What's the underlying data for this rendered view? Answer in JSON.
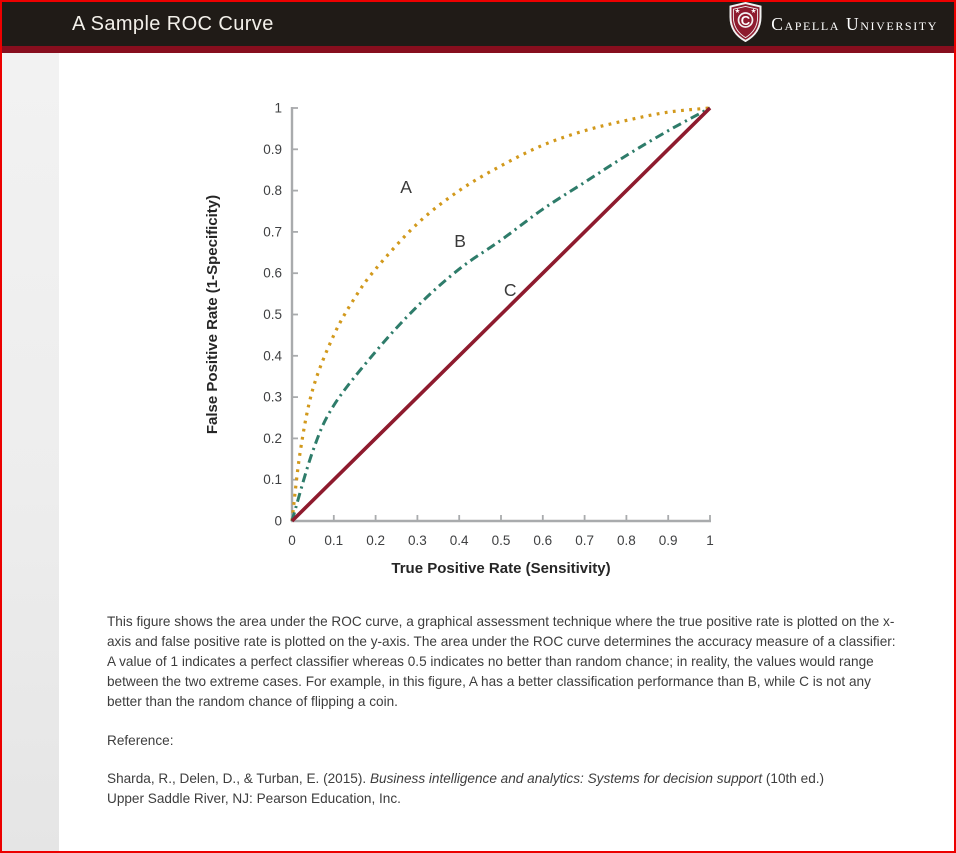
{
  "header": {
    "title": "A Sample ROC Curve",
    "logo_text": "Capella University",
    "bg_color": "#201b17",
    "accent_color": "#870e1e",
    "shield_color": "#8e1b2e",
    "border_color": "#ec0000"
  },
  "chart_data": {
    "type": "line",
    "title": "",
    "xlabel": "True Positive Rate (Sensitivity)",
    "ylabel": "False Positive Rate (1-Specificity)",
    "xlim": [
      0,
      1
    ],
    "ylim": [
      0,
      1
    ],
    "grid": false,
    "legend_position": "none",
    "axis_color": "#a9abad",
    "xticks": [
      "0",
      "0.1",
      "0.2",
      "0.3",
      "0.4",
      "0.5",
      "0.6",
      "0.7",
      "0.8",
      "0.9",
      "1"
    ],
    "yticks": [
      "0",
      "0.1",
      "0.2",
      "0.3",
      "0.4",
      "0.5",
      "0.6",
      "0.7",
      "0.8",
      "0.9",
      "1"
    ],
    "series": [
      {
        "name": "A",
        "style": "dotted",
        "color": "#d2991c",
        "x": [
          0,
          0.02,
          0.05,
          0.1,
          0.15,
          0.2,
          0.3,
          0.4,
          0.5,
          0.6,
          0.7,
          0.8,
          0.9,
          1
        ],
        "y": [
          0,
          0.17,
          0.32,
          0.45,
          0.54,
          0.61,
          0.72,
          0.8,
          0.86,
          0.91,
          0.945,
          0.97,
          0.99,
          1
        ],
        "label_pos": {
          "x": 0.273,
          "y": 0.809
        }
      },
      {
        "name": "B",
        "style": "dashdot",
        "color": "#2e7c6a",
        "x": [
          0,
          0.05,
          0.1,
          0.2,
          0.3,
          0.4,
          0.5,
          0.6,
          0.7,
          0.8,
          0.9,
          1
        ],
        "y": [
          0,
          0.17,
          0.28,
          0.41,
          0.52,
          0.61,
          0.68,
          0.755,
          0.82,
          0.885,
          0.945,
          1
        ],
        "label_pos": {
          "x": 0.402,
          "y": 0.678
        }
      },
      {
        "name": "C",
        "style": "solid",
        "color": "#8e1b2e",
        "x": [
          0,
          1
        ],
        "y": [
          0,
          1
        ],
        "label_pos": {
          "x": 0.522,
          "y": 0.559
        }
      }
    ]
  },
  "body": {
    "paragraph": "This figure shows the area under the ROC curve, a graphical assessment technique where the true positive rate is plotted on the x-axis and false positive rate is plotted on the y-axis. The area under the ROC curve determines the accuracy measure of a classifier: A value of 1 indicates a perfect classifier whereas 0.5 indicates no better than random chance; in reality, the values would range between the two extreme cases. For example, in this figure, A has a better classification performance than B, while C is not any better than the random chance of flipping a coin.",
    "reference_label": "Reference:",
    "citation": {
      "pre": "Sharda, R., Delen, D., & Turban, E. (2015). ",
      "italic": "Business intelligence and analytics: Systems for decision support",
      "post": " (10th ed.)",
      "line2": "Upper Saddle River, NJ: Pearson Education, Inc."
    }
  }
}
